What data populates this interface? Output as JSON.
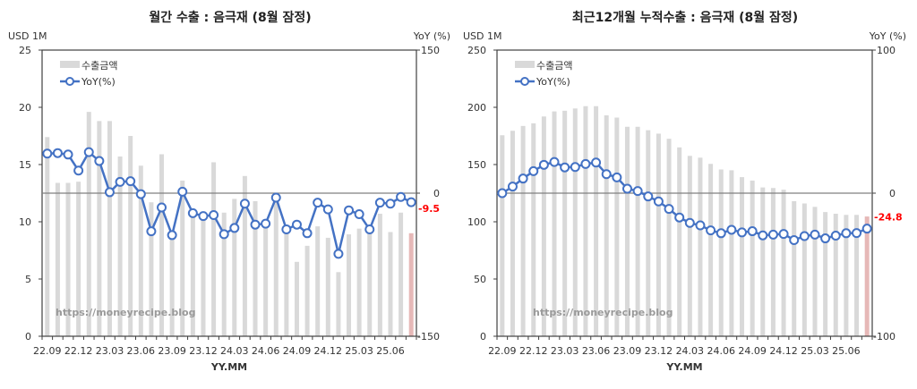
{
  "chart_data": [
    {
      "type": "bar+line",
      "title": "월간 수출 : 음극재 (8월 잠정)",
      "ylabel_left": "USD 1M",
      "ylabel_right": "YoY (%)",
      "xlabel": "YY.MM",
      "ylim_left": [
        0,
        25
      ],
      "yticks_left": [
        0,
        5,
        10,
        15,
        20,
        25
      ],
      "ylim_right": [
        -150,
        150
      ],
      "yticks_right": [
        -150,
        0,
        150
      ],
      "xtick_labels": [
        "22.09",
        "22.12",
        "23.03",
        "23.06",
        "23.09",
        "23.12",
        "24.03",
        "24.06",
        "24.09",
        "24.12",
        "25.03",
        "25.06"
      ],
      "categories": [
        "22.09",
        "22.10",
        "22.11",
        "22.12",
        "23.01",
        "23.02",
        "23.03",
        "23.04",
        "23.05",
        "23.06",
        "23.07",
        "23.08",
        "23.09",
        "23.10",
        "23.11",
        "23.12",
        "24.01",
        "24.02",
        "24.03",
        "24.04",
        "24.05",
        "24.06",
        "24.07",
        "24.08",
        "24.09",
        "24.10",
        "24.11",
        "24.12",
        "25.01",
        "25.02",
        "25.03",
        "25.04",
        "25.05",
        "25.06",
        "25.07",
        "25.08"
      ],
      "series": [
        {
          "name": "수출금액",
          "type": "bar",
          "axis": "left",
          "color": "#d9d9d9",
          "highlight_last_color": "#e6b8b7",
          "values": [
            17.4,
            13.4,
            13.4,
            13.5,
            19.6,
            18.8,
            18.8,
            15.7,
            17.5,
            14.9,
            11.7,
            15.9,
            9.0,
            13.6,
            10.8,
            10.4,
            15.2,
            10.8,
            12.0,
            14.0,
            11.8,
            9.8,
            11.9,
            9.2,
            6.5,
            7.9,
            9.6,
            8.6,
            5.6,
            8.9,
            9.4,
            9.0,
            10.7,
            9.1,
            10.8,
            9.0
          ]
        },
        {
          "name": "YoY(%)",
          "type": "line",
          "axis": "right",
          "color": "#4472c4",
          "values": [
            41.5,
            42,
            40.5,
            23.7,
            43,
            33.7,
            1,
            11.8,
            12.5,
            -1,
            -40,
            -15,
            -44,
            1.5,
            -21,
            -24,
            -23,
            -43,
            -36.5,
            -11,
            -33,
            -32,
            -4.7,
            -38,
            -33,
            -42,
            -10,
            -17,
            -63.6,
            -18,
            -22,
            -38,
            -10,
            -11,
            -4,
            -9.5
          ]
        }
      ],
      "last_label": "-9.5",
      "last_label_color": "#ff0000",
      "legend": "top-left",
      "watermark": "https://moneyrecipe.blog"
    },
    {
      "type": "bar+line",
      "title": "최근12개월 누적수출 : 음극재 (8월 잠정)",
      "ylabel_left": "USD 1M",
      "ylabel_right": "YoY (%)",
      "xlabel": "YY.MM",
      "ylim_left": [
        0,
        250
      ],
      "yticks_left": [
        0,
        50,
        100,
        150,
        200,
        250
      ],
      "ylim_right": [
        -100,
        100
      ],
      "yticks_right": [
        -100,
        0,
        100
      ],
      "xtick_labels": [
        "22.09",
        "22.12",
        "23.03",
        "23.06",
        "23.09",
        "23.12",
        "24.03",
        "24.06",
        "24.09",
        "24.12",
        "25.03",
        "25.06"
      ],
      "categories": [
        "22.09",
        "22.10",
        "22.11",
        "22.12",
        "23.01",
        "23.02",
        "23.03",
        "23.04",
        "23.05",
        "23.06",
        "23.07",
        "23.08",
        "23.09",
        "23.10",
        "23.11",
        "23.12",
        "24.01",
        "24.02",
        "24.03",
        "24.04",
        "24.05",
        "24.06",
        "24.07",
        "24.08",
        "24.09",
        "24.10",
        "24.11",
        "24.12",
        "25.01",
        "25.02",
        "25.03",
        "25.04",
        "25.05",
        "25.06",
        "25.07",
        "25.08"
      ],
      "series": [
        {
          "name": "수출금액",
          "type": "bar",
          "axis": "left",
          "color": "#d9d9d9",
          "highlight_last_color": "#e6b8b7",
          "values": [
            175.6,
            179.5,
            183.7,
            186,
            192,
            196.4,
            197,
            199,
            201,
            201,
            193,
            191,
            183,
            183,
            180,
            177,
            172.5,
            165,
            157.6,
            156,
            150.6,
            145.7,
            145,
            139,
            136,
            130,
            129.5,
            128,
            118,
            116,
            113,
            108.5,
            107,
            106,
            106,
            104.6
          ]
        },
        {
          "name": "YoY(%)",
          "type": "line",
          "axis": "right",
          "color": "#4472c4",
          "values": [
            0,
            4.6,
            10.2,
            15.4,
            19.8,
            21.8,
            18,
            18.3,
            20.4,
            21.4,
            13.3,
            11,
            3.1,
            1.5,
            -2.3,
            -5.8,
            -11,
            -17,
            -20.8,
            -22.5,
            -26,
            -28,
            -25.6,
            -27.4,
            -26.6,
            -29.5,
            -29,
            -28.5,
            -32.8,
            -30,
            -29,
            -31.6,
            -29.7,
            -28,
            -27.9,
            -24.8
          ]
        }
      ],
      "last_label": "-24.8",
      "last_label_color": "#ff0000",
      "legend": "top-left",
      "watermark": "https://moneyrecipe.blog"
    }
  ]
}
